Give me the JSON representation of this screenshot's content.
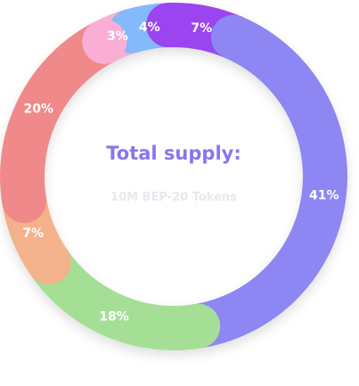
{
  "chart_data": {
    "type": "pie",
    "variant": "donut",
    "center_title": "Total supply:",
    "center_subtitle": "10M BEP-20 Tokens",
    "values": [
      7,
      41,
      18,
      7,
      20,
      3,
      4
    ],
    "value_labels": [
      "7%",
      "41%",
      "18%",
      "7%",
      "20%",
      "3%",
      "4%"
    ],
    "colors": [
      "#9b44f0",
      "#8e86f2",
      "#a5df96",
      "#f3b28b",
      "#f08a8a",
      "#fbaed5",
      "#84b9fb"
    ]
  },
  "colors": {
    "title": "#8b74ec",
    "subtitle": "#e8e8ef",
    "label": "#ffffff"
  }
}
